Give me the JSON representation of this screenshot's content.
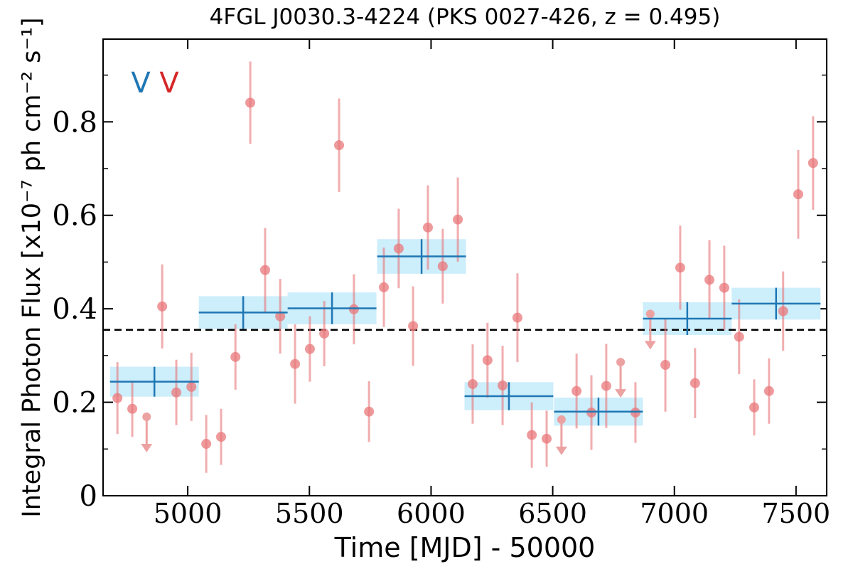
{
  "chart_data": {
    "type": "errorbar",
    "title": "4FGL J0030.3-4224 (PKS 0027-426, z = 0.495)",
    "x_label": "Time [MJD] - 50000",
    "y_label": "Integral Photon Flux [x10⁻⁷ ph cm⁻² s⁻¹]",
    "annotations": [
      {
        "text": "V",
        "color": "#1f77b4"
      },
      {
        "text": "V",
        "color": "#d62728"
      }
    ],
    "xlim": [
      4652,
      7626
    ],
    "ylim": [
      0,
      0.977
    ],
    "xticks": [
      5000,
      5500,
      6000,
      6500,
      7000,
      7500
    ],
    "yticks": [
      0,
      0.2,
      0.4,
      0.6,
      0.8
    ],
    "yminorticks": [
      0.1,
      0.3,
      0.5,
      0.7,
      0.9
    ],
    "hline": 0.355,
    "points": {
      "color": "#e8777a",
      "x": [
        4711,
        4772,
        4895,
        4953,
        5015,
        5076,
        5137,
        5196,
        5257,
        5318,
        5380,
        5441,
        5502,
        5561,
        5622,
        5683,
        5745,
        5806,
        5867,
        5926,
        5987,
        6048,
        6110,
        6171,
        6232,
        6294,
        6355,
        6414,
        6475,
        6598,
        6659,
        6720,
        6840,
        6963,
        7024,
        7085,
        7144,
        7205,
        7266,
        7328,
        7389,
        7447,
        7509,
        7570
      ],
      "values": [
        0.209,
        0.186,
        0.405,
        0.221,
        0.233,
        0.111,
        0.126,
        0.297,
        0.841,
        0.483,
        0.384,
        0.282,
        0.314,
        0.347,
        0.75,
        0.399,
        0.18,
        0.446,
        0.529,
        0.363,
        0.574,
        0.491,
        0.591,
        0.239,
        0.29,
        0.236,
        0.381,
        0.13,
        0.122,
        0.224,
        0.178,
        0.235,
        0.178,
        0.28,
        0.488,
        0.241,
        0.462,
        0.445,
        0.34,
        0.189,
        0.224,
        0.395,
        0.645,
        0.712
      ],
      "errors": [
        0.077,
        0.06,
        0.09,
        0.07,
        0.073,
        0.062,
        0.06,
        0.07,
        0.088,
        0.09,
        0.08,
        0.085,
        0.07,
        0.07,
        0.1,
        0.075,
        0.065,
        0.085,
        0.085,
        0.085,
        0.09,
        0.08,
        0.09,
        0.085,
        0.08,
        0.085,
        0.095,
        0.07,
        0.06,
        0.08,
        0.08,
        0.09,
        0.065,
        0.1,
        0.09,
        0.075,
        0.085,
        0.09,
        0.08,
        0.06,
        0.07,
        0.085,
        0.095,
        0.1
      ]
    },
    "upper_limits": {
      "color": "#eda2a2",
      "x": [
        4831,
        6536,
        6779,
        6901
      ],
      "values": [
        0.169,
        0.163,
        0.286,
        0.389
      ]
    },
    "bins": {
      "color": "#1f77b4",
      "band_color": "#cdeefb",
      "x": [
        4863,
        5228,
        5593,
        5961,
        6320,
        6688,
        7053,
        7418
      ],
      "xerr": [
        182.5,
        182.5,
        182.5,
        182.5,
        182.5,
        182.5,
        182.5,
        182.5
      ],
      "values": [
        0.244,
        0.392,
        0.401,
        0.512,
        0.213,
        0.18,
        0.379,
        0.411
      ],
      "errors": [
        0.032,
        0.035,
        0.034,
        0.037,
        0.03,
        0.03,
        0.035,
        0.034
      ]
    }
  }
}
